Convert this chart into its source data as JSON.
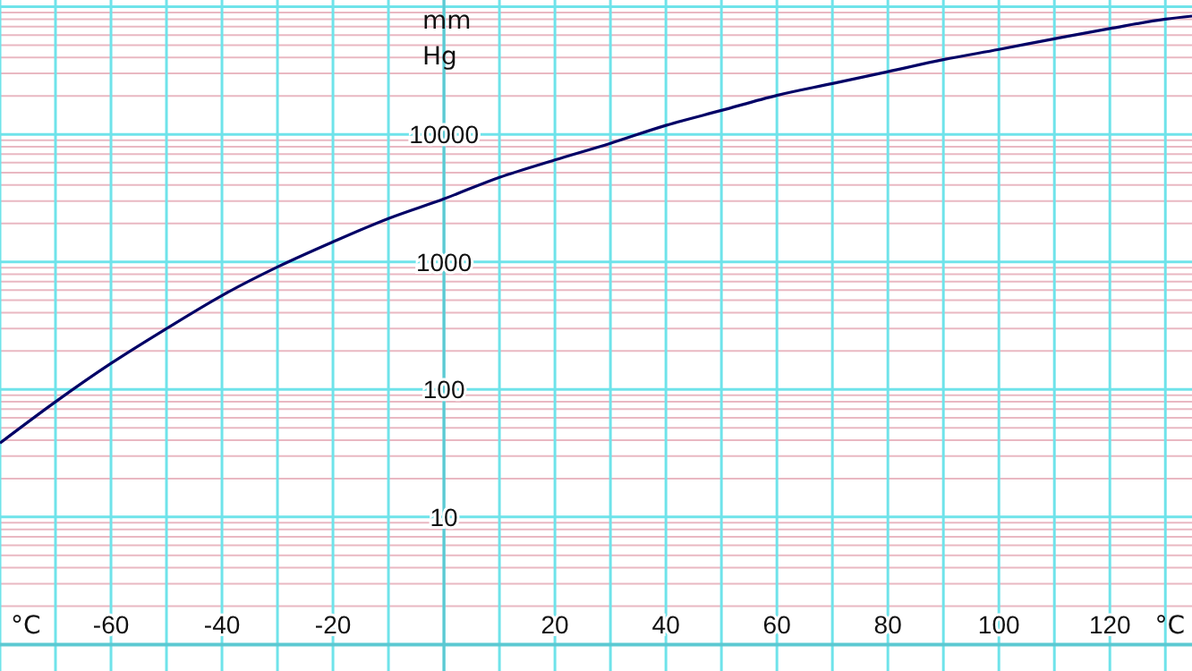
{
  "chart_data": {
    "type": "line",
    "xlabel": "°C",
    "ylabel": "mm Hg",
    "log": "y",
    "grid": true,
    "marker": "none",
    "line_style": "solid",
    "xlim": [
      -80,
      134.8
    ],
    "ylim": [
      0.62,
      113000
    ],
    "xticks": [
      {
        "value": -80,
        "label": null
      },
      {
        "value": -70,
        "label": null
      },
      -60,
      {
        "value": -50,
        "label": null
      },
      -40,
      {
        "value": -30,
        "label": null
      },
      -20,
      {
        "value": -10,
        "label": null
      },
      {
        "value": 0,
        "label": null
      },
      {
        "value": 10,
        "label": null
      },
      20,
      {
        "value": 30,
        "label": null
      },
      40,
      {
        "value": 50,
        "label": null
      },
      60,
      {
        "value": 70,
        "label": null
      },
      80,
      {
        "value": 90,
        "label": null
      },
      100,
      {
        "value": 110,
        "label": null
      },
      120,
      {
        "value": 130,
        "label": null
      }
    ],
    "yticks": [
      {
        "value": 1,
        "label": null
      },
      {
        "value": 2,
        "label": null
      },
      {
        "value": 3,
        "label": null
      },
      {
        "value": 4,
        "label": null
      },
      {
        "value": 5,
        "label": null
      },
      {
        "value": 6,
        "label": null
      },
      {
        "value": 7,
        "label": null
      },
      {
        "value": 8,
        "label": null
      },
      {
        "value": 9,
        "label": null
      },
      10,
      {
        "value": 20,
        "label": null
      },
      {
        "value": 30,
        "label": null
      },
      {
        "value": 40,
        "label": null
      },
      {
        "value": 50,
        "label": null
      },
      {
        "value": 60,
        "label": null
      },
      {
        "value": 70,
        "label": null
      },
      {
        "value": 80,
        "label": null
      },
      {
        "value": 90,
        "label": null
      },
      100,
      {
        "value": 200,
        "label": null
      },
      {
        "value": 300,
        "label": null
      },
      {
        "value": 400,
        "label": null
      },
      {
        "value": 500,
        "label": null
      },
      {
        "value": 600,
        "label": null
      },
      {
        "value": 700,
        "label": null
      },
      {
        "value": 800,
        "label": null
      },
      {
        "value": 900,
        "label": null
      },
      1000,
      {
        "value": 2000,
        "label": null
      },
      {
        "value": 3000,
        "label": null
      },
      {
        "value": 4000,
        "label": null
      },
      {
        "value": 5000,
        "label": null
      },
      {
        "value": 6000,
        "label": null
      },
      {
        "value": 7000,
        "label": null
      },
      {
        "value": 8000,
        "label": null
      },
      {
        "value": 9000,
        "label": null
      },
      10000,
      {
        "value": 20000,
        "label": null
      },
      {
        "value": 30000,
        "label": null
      },
      {
        "value": 40000,
        "label": null
      },
      {
        "value": 50000,
        "label": null
      },
      {
        "value": 60000,
        "label": null
      },
      {
        "value": 70000,
        "label": null
      },
      {
        "value": 80000,
        "label": null
      },
      {
        "value": 90000,
        "label": null
      },
      {
        "value": 100000,
        "label": null
      }
    ],
    "x": [
      -80,
      -70,
      -60,
      -50,
      -40,
      -30,
      -20,
      -10,
      0,
      10,
      20,
      30,
      40,
      50,
      60,
      70,
      80,
      90,
      100,
      110,
      120,
      130,
      134.8
    ],
    "series": [
      {
        "color": "#000066",
        "values": [
          38,
          80,
          160,
          300,
          545,
          912,
          1435,
          2190,
          3120,
          4600,
          6300,
          8500,
          11750,
          15400,
          20200,
          25000,
          31000,
          38500,
          46300,
          56100,
          67500,
          80000,
          84500
        ]
      }
    ]
  }
}
